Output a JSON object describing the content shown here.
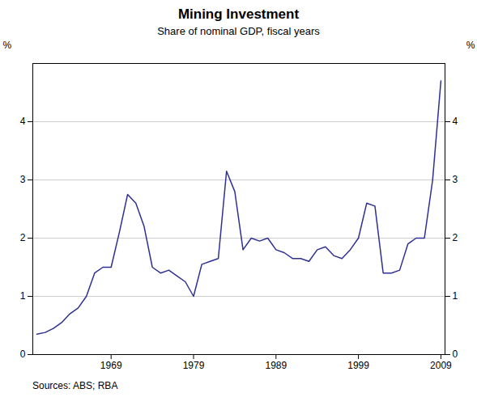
{
  "chart_data": {
    "type": "line",
    "title": "Mining Investment",
    "subtitle": "Share of nominal GDP, fiscal years",
    "source": "Sources: ABS; RBA",
    "ylabel": "%",
    "y2label": "%",
    "color": "#2e3192",
    "x": [
      1960,
      1961,
      1962,
      1963,
      1964,
      1965,
      1966,
      1967,
      1968,
      1969,
      1970,
      1971,
      1972,
      1973,
      1974,
      1975,
      1976,
      1977,
      1978,
      1979,
      1980,
      1981,
      1982,
      1983,
      1984,
      1985,
      1986,
      1987,
      1988,
      1989,
      1990,
      1991,
      1992,
      1993,
      1994,
      1995,
      1996,
      1997,
      1998,
      1999,
      2000,
      2001,
      2002,
      2003,
      2004,
      2005,
      2006,
      2007,
      2008,
      2009
    ],
    "values": [
      0.35,
      0.38,
      0.45,
      0.55,
      0.7,
      0.8,
      1.0,
      1.4,
      1.5,
      1.5,
      2.1,
      2.75,
      2.6,
      2.2,
      1.5,
      1.4,
      1.45,
      1.35,
      1.25,
      1.0,
      1.55,
      1.6,
      1.65,
      3.15,
      2.8,
      1.8,
      2.0,
      1.95,
      2.0,
      1.8,
      1.75,
      1.65,
      1.65,
      1.6,
      1.8,
      1.85,
      1.7,
      1.65,
      1.8,
      2.0,
      2.6,
      2.55,
      1.4,
      1.4,
      1.45,
      1.9,
      2.0,
      2.0,
      3.0,
      4.7
    ],
    "xlim": [
      1959.5,
      2009.5
    ],
    "xticks": [
      1969,
      1979,
      1989,
      1999,
      2009
    ],
    "ylim": [
      0,
      5.0
    ],
    "yticks": [
      0,
      1,
      2,
      3,
      4
    ],
    "y2lim": [
      0,
      5.0
    ],
    "y2ticks": [
      0,
      1,
      2,
      3,
      4
    ],
    "grid": true
  }
}
